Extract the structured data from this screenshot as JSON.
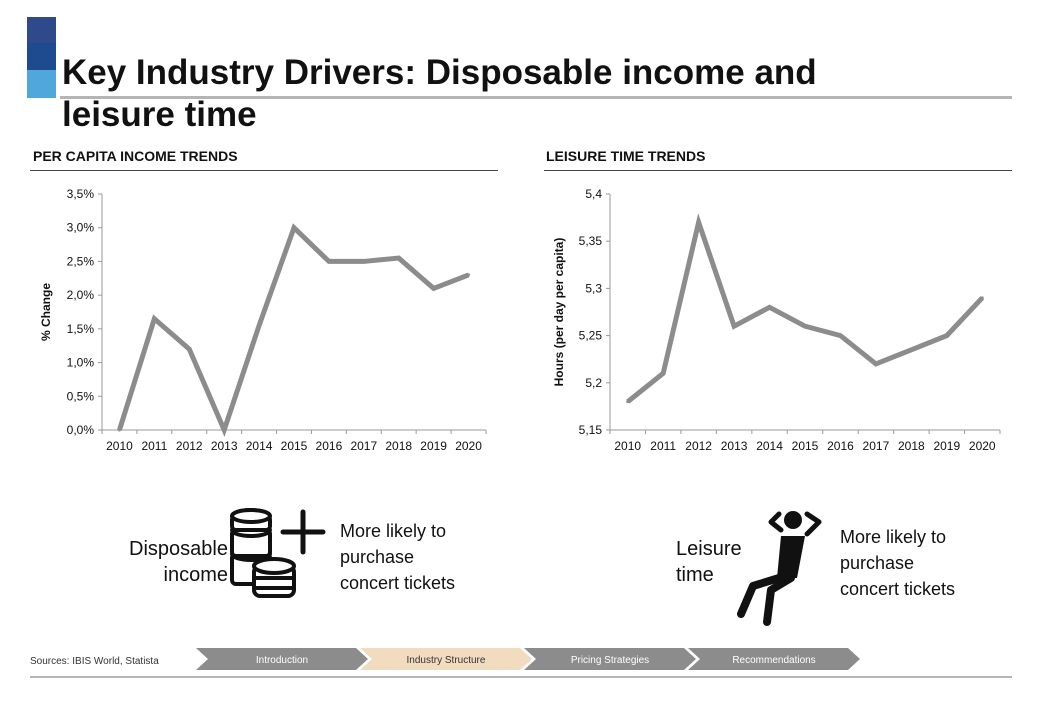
{
  "header": {
    "title_line1": "Key Industry Drivers: Disposable income and",
    "title_line2": "leisure time"
  },
  "left_section": {
    "title": "PER CAPITA INCOME TRENDS"
  },
  "right_section": {
    "title": "LEISURE TIME TRENDS"
  },
  "chart_data": [
    {
      "type": "line",
      "title": "",
      "xlabel": "",
      "ylabel": "% Change",
      "x": [
        "2010",
        "2011",
        "2012",
        "2013",
        "2014",
        "2015",
        "2016",
        "2017",
        "2018",
        "2019",
        "2020"
      ],
      "series": [
        {
          "values": [
            0.0,
            1.65,
            1.2,
            0.0,
            1.55,
            3.0,
            2.5,
            2.5,
            2.55,
            2.1,
            2.3
          ]
        }
      ],
      "ylim": [
        0,
        3.5
      ],
      "yticks": [
        "0,0%",
        "0,5%",
        "1,0%",
        "1,5%",
        "2,0%",
        "2,5%",
        "3,0%",
        "3,5%"
      ],
      "grid": false,
      "color": "#8c8c8c"
    },
    {
      "type": "line",
      "title": "",
      "xlabel": "",
      "ylabel": "Hours (per day per capita)",
      "x": [
        "2010",
        "2011",
        "2012",
        "2013",
        "2014",
        "2015",
        "2016",
        "2017",
        "2018",
        "2019",
        "2020"
      ],
      "series": [
        {
          "values": [
            5.18,
            5.21,
            5.37,
            5.26,
            5.28,
            5.26,
            5.25,
            5.22,
            5.235,
            5.25,
            5.29
          ]
        }
      ],
      "ylim": [
        5.15,
        5.4
      ],
      "yticks": [
        "5,15",
        "5,2",
        "5,25",
        "5,3",
        "5,35",
        "5,4"
      ],
      "grid": false,
      "color": "#8c8c8c"
    }
  ],
  "left_callout": {
    "label_line1": "Disposable",
    "label_line2": "income",
    "note_line1": "More likely to",
    "note_line2": "purchase",
    "note_line3": "concert tickets"
  },
  "right_callout": {
    "label_line1": "Leisure",
    "label_line2": "time",
    "note_line1": "More likely to",
    "note_line2": "purchase",
    "note_line3": "concert tickets"
  },
  "icons": {
    "left": "coins-stack-plus-icon",
    "right": "relaxing-person-icon"
  },
  "footer": {
    "source": "Sources: IBIS World, Statista",
    "nav": [
      "Introduction",
      "Industry Structure",
      "Pricing Strategies",
      "Recommendations"
    ],
    "active_index": 1,
    "colors": {
      "nav_default": "#8c8c8c",
      "nav_active": "#f2dcc0"
    }
  }
}
